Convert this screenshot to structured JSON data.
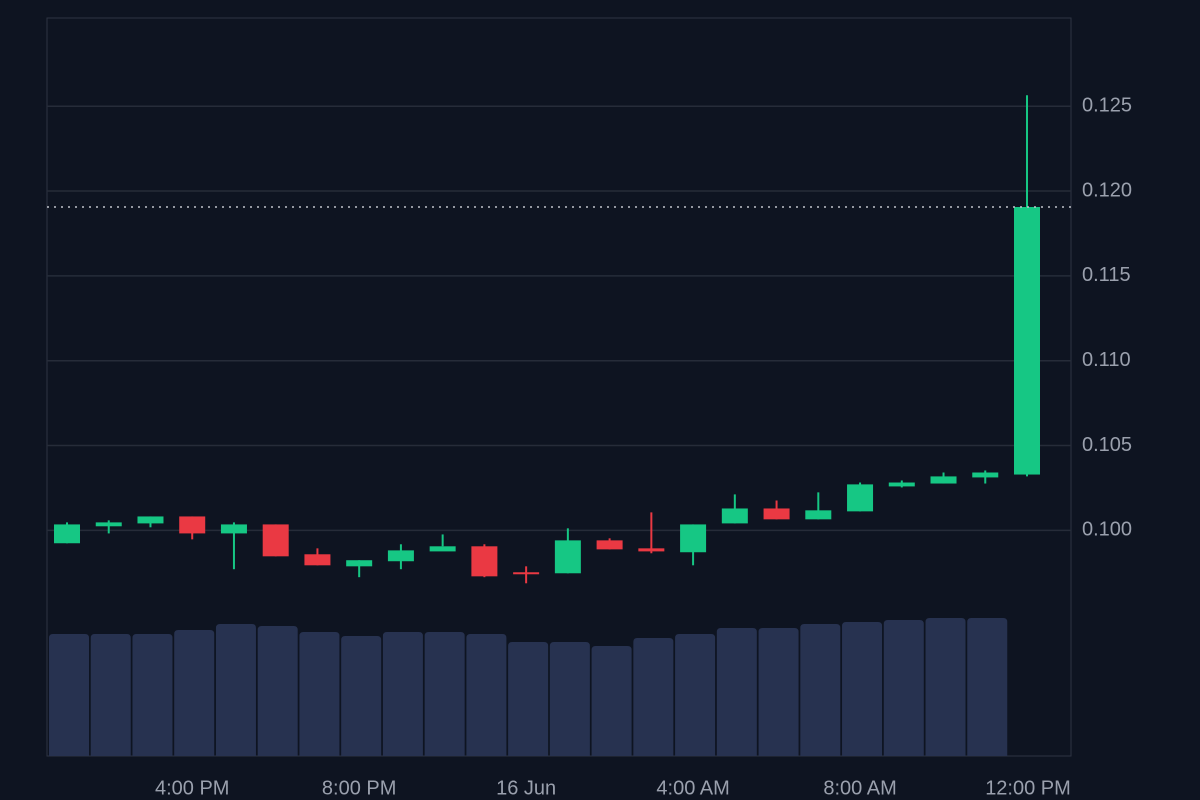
{
  "chart_data": {
    "type": "candlestick",
    "categories": [
      null,
      null,
      null,
      "4:00 PM",
      null,
      null,
      null,
      "8:00 PM",
      null,
      null,
      null,
      "16 Jun",
      null,
      null,
      null,
      "4:00 AM",
      null,
      null,
      null,
      "8:00 AM",
      null,
      null,
      null,
      "12:00 PM"
    ],
    "open": [
      0.09924,
      0.10024,
      0.10041,
      0.10082,
      0.09982,
      0.10035,
      0.09859,
      0.09788,
      0.09818,
      0.09876,
      0.09906,
      0.09753,
      0.09747,
      0.09941,
      0.09894,
      0.09871,
      0.10041,
      0.10129,
      0.10065,
      0.10112,
      0.10259,
      0.10276,
      0.10312,
      0.10329
    ],
    "high": [
      0.10047,
      0.10059,
      0.10082,
      0.10082,
      0.10047,
      0.10035,
      0.09894,
      0.09824,
      0.09918,
      0.09976,
      0.09918,
      0.09788,
      0.10012,
      0.09953,
      0.10106,
      0.10035,
      0.10212,
      0.10176,
      0.10224,
      0.10282,
      0.10294,
      0.10341,
      0.10353,
      0.12565
    ],
    "low": [
      0.09924,
      0.09982,
      0.10018,
      0.09947,
      0.09771,
      0.09847,
      0.09794,
      0.09724,
      0.09771,
      0.09906,
      0.09724,
      0.09688,
      0.09747,
      0.09888,
      0.09865,
      0.09794,
      0.10041,
      0.10065,
      0.10065,
      0.10112,
      0.10253,
      0.10276,
      0.10276,
      0.10318
    ],
    "close": [
      0.10035,
      0.10047,
      0.10082,
      0.09982,
      0.10035,
      0.09847,
      0.09794,
      0.09824,
      0.09882,
      0.09906,
      0.09729,
      0.09747,
      0.09941,
      0.09888,
      0.09876,
      0.10035,
      0.10129,
      0.10065,
      0.10118,
      0.10271,
      0.10282,
      0.10318,
      0.10341,
      0.11906
    ],
    "volume": [
      122,
      122,
      122,
      126,
      132,
      130,
      124,
      120,
      124,
      124,
      122,
      114,
      114,
      110,
      118,
      122,
      128,
      128,
      132,
      134,
      136,
      138,
      138,
      null
    ],
    "up_color": "#16c784",
    "down_color": "#ea3943",
    "volume_color": "#273250",
    "ylim": [
      0.0867,
      0.1302
    ],
    "yticks": [
      {
        "value": 0.1,
        "label": "0.100"
      },
      0.105,
      {
        "value": 0.11,
        "label": "0.110"
      },
      0.115,
      {
        "value": 0.12,
        "label": "0.120"
      },
      0.125
    ],
    "grid": true
  }
}
